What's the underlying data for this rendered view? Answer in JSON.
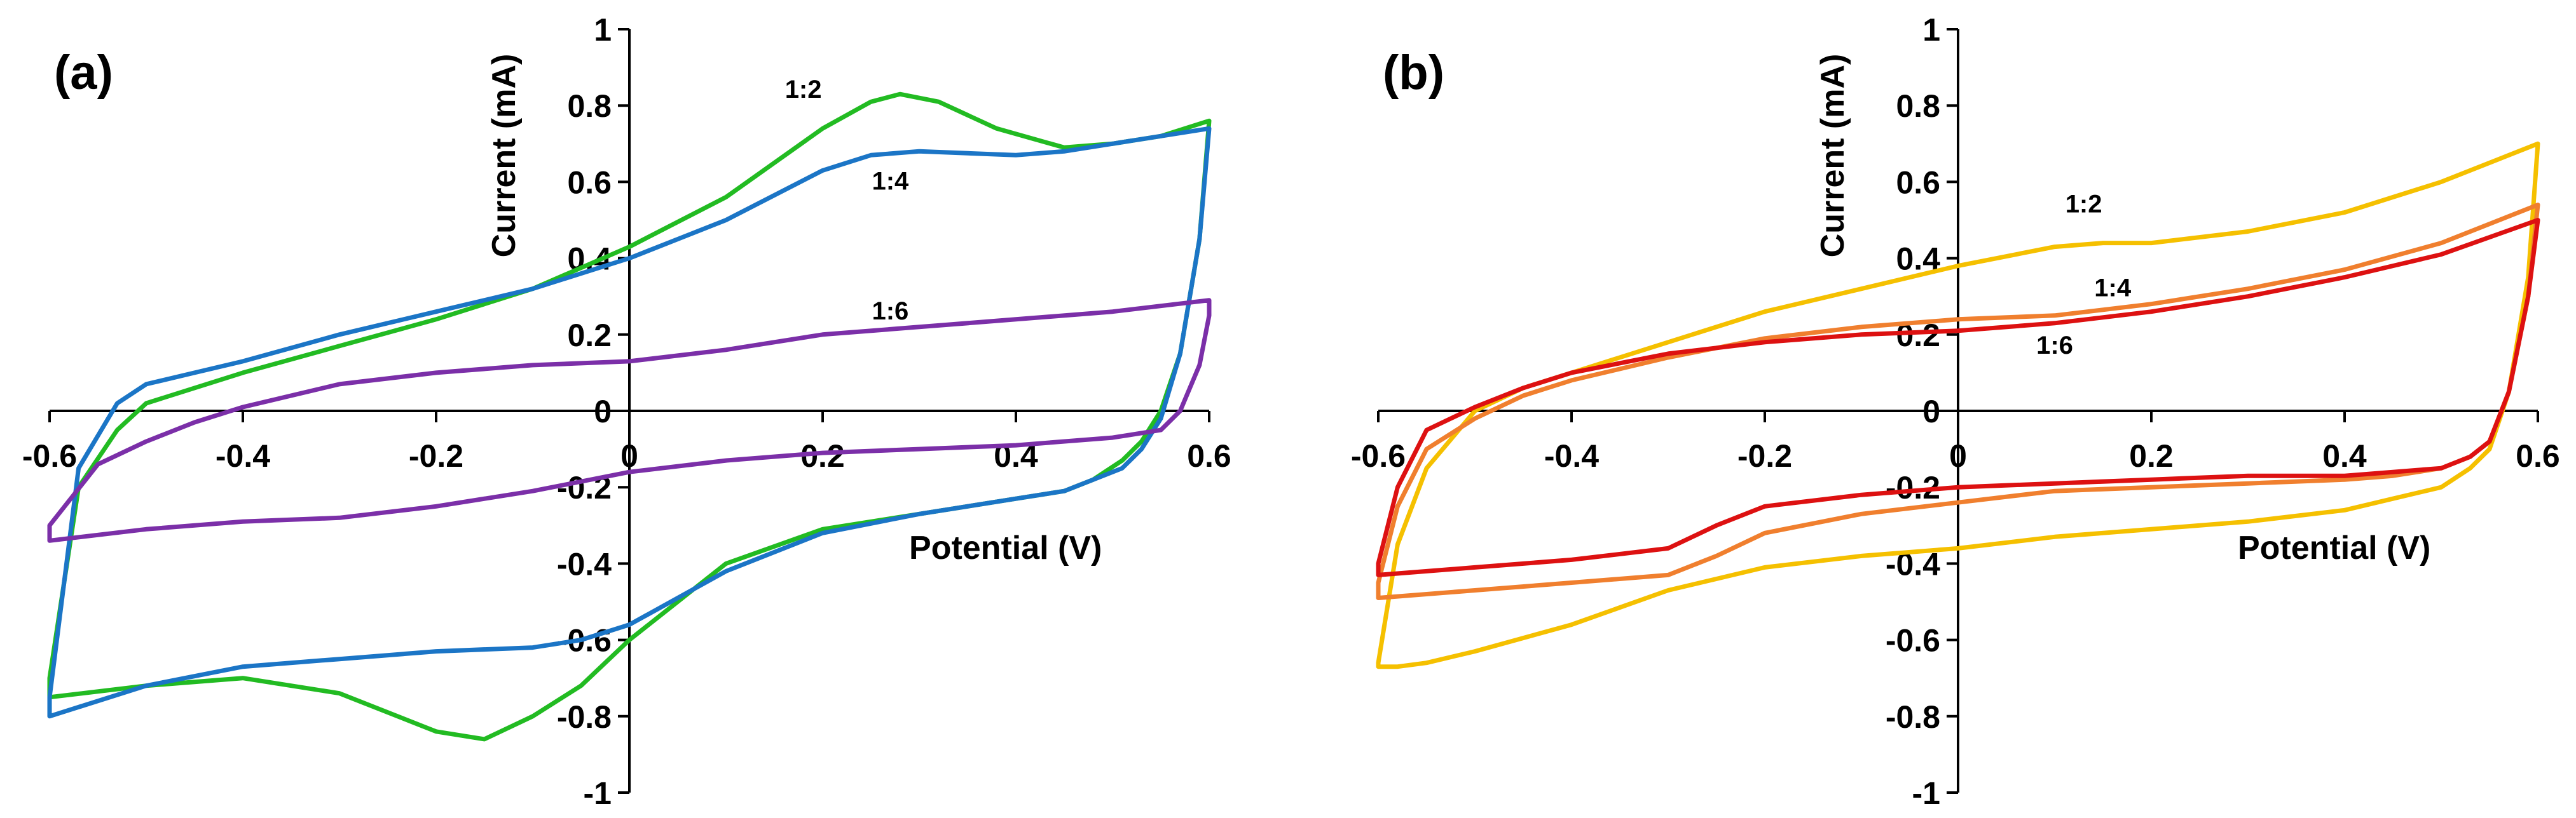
{
  "chart_data": [
    {
      "type": "line",
      "panel_label": "(a)",
      "xlabel": "Potential (V)",
      "ylabel": "Current  (mA)",
      "xlim": [
        -0.6,
        0.6
      ],
      "ylim": [
        -1,
        1
      ],
      "xticks": [
        -0.6,
        -0.4,
        -0.2,
        0,
        0.2,
        0.4,
        0.6
      ],
      "yticks": [
        1,
        0.8,
        0.6,
        0.4,
        0.2,
        0,
        -0.2,
        -0.4,
        -0.6,
        -0.8,
        -1
      ],
      "xtick_labels": [
        "-0.6",
        "-0.4",
        "-0.2",
        "0",
        "0.2",
        "0.4",
        "0.6"
      ],
      "ytick_labels": [
        "1",
        "0.8",
        "0.6",
        "0.4",
        "0.2",
        "0",
        "-0.2",
        "-0.4",
        "-0.6",
        "-0.8",
        "-1"
      ],
      "grid": false,
      "series": [
        {
          "name": "1:2",
          "color": "#22BB22",
          "label_at": [
            0.18,
            0.82
          ],
          "x": [
            -0.6,
            -0.57,
            -0.53,
            -0.5,
            -0.45,
            -0.4,
            -0.3,
            -0.2,
            -0.1,
            0,
            0.1,
            0.2,
            0.25,
            0.28,
            0.32,
            0.38,
            0.45,
            0.5,
            0.55,
            0.6,
            0.59,
            0.57,
            0.55,
            0.53,
            0.51,
            0.48,
            0.45,
            0.4,
            0.3,
            0.2,
            0.1,
            0,
            -0.05,
            -0.1,
            -0.15,
            -0.2,
            -0.3,
            -0.4,
            -0.5,
            -0.6,
            -0.6
          ],
          "y": [
            -0.7,
            -0.2,
            -0.05,
            0.02,
            0.06,
            0.1,
            0.17,
            0.24,
            0.32,
            0.43,
            0.56,
            0.74,
            0.81,
            0.83,
            0.81,
            0.74,
            0.69,
            0.7,
            0.72,
            0.76,
            0.45,
            0.15,
            0.0,
            -0.08,
            -0.13,
            -0.18,
            -0.21,
            -0.23,
            -0.27,
            -0.31,
            -0.4,
            -0.6,
            -0.72,
            -0.8,
            -0.86,
            -0.84,
            -0.74,
            -0.7,
            -0.72,
            -0.75,
            -0.7
          ]
        },
        {
          "name": "1:4",
          "color": "#1B75C6",
          "label_at": [
            0.27,
            0.58
          ],
          "x": [
            -0.6,
            -0.57,
            -0.53,
            -0.5,
            -0.45,
            -0.4,
            -0.3,
            -0.2,
            -0.1,
            0,
            0.1,
            0.2,
            0.25,
            0.3,
            0.35,
            0.4,
            0.45,
            0.5,
            0.55,
            0.6,
            0.59,
            0.57,
            0.55,
            0.53,
            0.51,
            0.48,
            0.45,
            0.4,
            0.3,
            0.2,
            0.1,
            0,
            -0.05,
            -0.1,
            -0.2,
            -0.3,
            -0.4,
            -0.5,
            -0.6,
            -0.6
          ],
          "y": [
            -0.75,
            -0.15,
            0.02,
            0.07,
            0.1,
            0.13,
            0.2,
            0.26,
            0.32,
            0.4,
            0.5,
            0.63,
            0.67,
            0.68,
            0.675,
            0.67,
            0.68,
            0.7,
            0.72,
            0.74,
            0.45,
            0.15,
            -0.02,
            -0.1,
            -0.15,
            -0.18,
            -0.21,
            -0.23,
            -0.27,
            -0.32,
            -0.42,
            -0.56,
            -0.6,
            -0.62,
            -0.63,
            -0.65,
            -0.67,
            -0.72,
            -0.8,
            -0.75
          ]
        },
        {
          "name": "1:6",
          "color": "#7B2FA8",
          "label_at": [
            0.27,
            0.24
          ],
          "x": [
            -0.6,
            -0.55,
            -0.5,
            -0.45,
            -0.4,
            -0.3,
            -0.2,
            -0.1,
            0,
            0.1,
            0.2,
            0.3,
            0.4,
            0.5,
            0.6,
            0.6,
            0.59,
            0.57,
            0.55,
            0.5,
            0.4,
            0.3,
            0.2,
            0.1,
            0,
            -0.1,
            -0.2,
            -0.3,
            -0.4,
            -0.5,
            -0.6,
            -0.6
          ],
          "y": [
            -0.3,
            -0.14,
            -0.08,
            -0.03,
            0.01,
            0.07,
            0.1,
            0.12,
            0.13,
            0.16,
            0.2,
            0.22,
            0.24,
            0.26,
            0.29,
            0.25,
            0.12,
            0.0,
            -0.05,
            -0.07,
            -0.09,
            -0.1,
            -0.11,
            -0.13,
            -0.16,
            -0.21,
            -0.25,
            -0.28,
            -0.29,
            -0.31,
            -0.34,
            -0.3
          ]
        }
      ]
    },
    {
      "type": "line",
      "panel_label": "(b)",
      "xlabel": "Potential (V)",
      "ylabel": "Current  (mA)",
      "xlim": [
        -0.6,
        0.6
      ],
      "ylim": [
        -1,
        1
      ],
      "xticks": [
        -0.6,
        -0.4,
        -0.2,
        0,
        0.2,
        0.4,
        0.6
      ],
      "yticks": [
        1,
        0.8,
        0.6,
        0.4,
        0.2,
        0,
        -0.2,
        -0.4,
        -0.6,
        -0.8,
        -1
      ],
      "xtick_labels": [
        "-0.6",
        "-0.4",
        "-0.2",
        "0",
        "0.2",
        "0.4",
        "0.6"
      ],
      "ytick_labels": [
        "1",
        "0.8",
        "0.6",
        "0.4",
        "0.2",
        "0",
        "-0.2",
        "-0.4",
        "-0.6",
        "-0.8",
        "-1"
      ],
      "grid": false,
      "series": [
        {
          "name": "1:2",
          "color": "#F5C000",
          "label_at": [
            0.13,
            0.52
          ],
          "x": [
            -0.6,
            -0.58,
            -0.55,
            -0.5,
            -0.45,
            -0.4,
            -0.3,
            -0.2,
            -0.1,
            0,
            0.1,
            0.15,
            0.2,
            0.3,
            0.4,
            0.5,
            0.6,
            0.59,
            0.57,
            0.55,
            0.53,
            0.5,
            0.45,
            0.4,
            0.3,
            0.2,
            0.1,
            0,
            -0.1,
            -0.2,
            -0.3,
            -0.4,
            -0.5,
            -0.55,
            -0.58,
            -0.6,
            -0.6
          ],
          "y": [
            -0.66,
            -0.35,
            -0.15,
            0.0,
            0.06,
            0.1,
            0.18,
            0.26,
            0.32,
            0.38,
            0.43,
            0.44,
            0.44,
            0.47,
            0.52,
            0.6,
            0.7,
            0.35,
            0.05,
            -0.1,
            -0.15,
            -0.2,
            -0.23,
            -0.26,
            -0.29,
            -0.31,
            -0.33,
            -0.36,
            -0.38,
            -0.41,
            -0.47,
            -0.56,
            -0.63,
            -0.66,
            -0.67,
            -0.67,
            -0.66
          ]
        },
        {
          "name": "1:4",
          "color": "#F07F2E",
          "label_at": [
            0.16,
            0.3
          ],
          "x": [
            -0.6,
            -0.58,
            -0.55,
            -0.5,
            -0.45,
            -0.4,
            -0.3,
            -0.2,
            -0.1,
            0,
            0.1,
            0.2,
            0.3,
            0.4,
            0.5,
            0.6,
            0.59,
            0.57,
            0.55,
            0.53,
            0.5,
            0.45,
            0.4,
            0.3,
            0.2,
            0.1,
            0,
            -0.1,
            -0.2,
            -0.25,
            -0.3,
            -0.4,
            -0.5,
            -0.6,
            -0.6
          ],
          "y": [
            -0.45,
            -0.25,
            -0.1,
            -0.02,
            0.04,
            0.08,
            0.14,
            0.19,
            0.22,
            0.24,
            0.25,
            0.28,
            0.32,
            0.37,
            0.44,
            0.54,
            0.3,
            0.05,
            -0.08,
            -0.12,
            -0.15,
            -0.17,
            -0.18,
            -0.19,
            -0.2,
            -0.21,
            -0.24,
            -0.27,
            -0.32,
            -0.38,
            -0.43,
            -0.45,
            -0.47,
            -0.49,
            -0.45
          ]
        },
        {
          "name": "1:6",
          "color": "#DD1111",
          "label_at": [
            0.1,
            0.15
          ],
          "x": [
            -0.6,
            -0.58,
            -0.55,
            -0.5,
            -0.45,
            -0.4,
            -0.3,
            -0.2,
            -0.1,
            0,
            0.1,
            0.2,
            0.3,
            0.4,
            0.5,
            0.6,
            0.59,
            0.57,
            0.55,
            0.53,
            0.5,
            0.45,
            0.4,
            0.3,
            0.2,
            0.1,
            0,
            -0.1,
            -0.2,
            -0.25,
            -0.3,
            -0.4,
            -0.5,
            -0.6,
            -0.6
          ],
          "y": [
            -0.4,
            -0.2,
            -0.05,
            0.01,
            0.06,
            0.1,
            0.15,
            0.18,
            0.2,
            0.21,
            0.23,
            0.26,
            0.3,
            0.35,
            0.41,
            0.5,
            0.3,
            0.05,
            -0.08,
            -0.12,
            -0.15,
            -0.16,
            -0.17,
            -0.17,
            -0.18,
            -0.19,
            -0.2,
            -0.22,
            -0.25,
            -0.3,
            -0.36,
            -0.39,
            -0.41,
            -0.43,
            -0.4
          ]
        }
      ]
    }
  ]
}
